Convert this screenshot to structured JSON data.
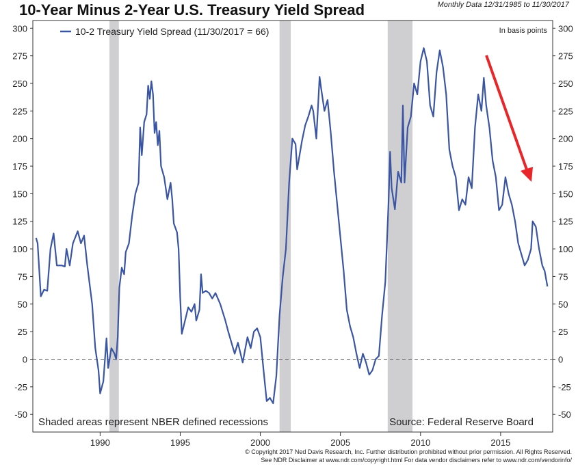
{
  "chart_data": {
    "type": "line",
    "title": "10-Year Minus 2-Year U.S. Treasury Yield Spread",
    "subtitle": "Monthly Data 12/31/1985 to 11/30/2017",
    "y_label": "In basis points",
    "annotations": [
      "Shaded areas represent NBER defined recessions",
      "Source: Federal Reserve Board"
    ],
    "footer": [
      "© Copyright 2017 Ned Davis Research, Inc. Further distribution prohibited without prior permission. All Rights Reserved.",
      "See NDR Disclaimer at www.ndr.com/copyright.html  For data vendor disclaimers refer to www.ndr.com/vendorinfo/"
    ],
    "recessions": [
      [
        1990.58,
        1991.17
      ],
      [
        2001.2,
        2001.9
      ],
      [
        2007.95,
        2009.5
      ]
    ],
    "xlim": [
      1985.8,
      2018.25
    ],
    "xticks": [
      1990,
      1995,
      2000,
      2005,
      2010,
      2015
    ],
    "ylim": [
      -66,
      307
    ],
    "yticks": [
      -50,
      -25,
      0,
      25,
      50,
      75,
      100,
      125,
      150,
      175,
      200,
      225,
      250,
      275,
      300
    ],
    "zero_line": true,
    "x": [
      1986.0,
      1986.1,
      1986.3,
      1986.5,
      1986.7,
      1986.9,
      1987.1,
      1987.3,
      1987.6,
      1987.8,
      1987.9,
      1988.1,
      1988.3,
      1988.6,
      1988.8,
      1989.0,
      1989.2,
      1989.5,
      1989.7,
      1989.9,
      1990.0,
      1990.2,
      1990.4,
      1990.5,
      1990.7,
      1990.9,
      1991.0,
      1991.1,
      1991.2,
      1991.35,
      1991.5,
      1991.6,
      1991.8,
      1992.0,
      1992.2,
      1992.4,
      1992.5,
      1992.6,
      1992.75,
      1992.9,
      1993.0,
      1993.1,
      1993.2,
      1993.3,
      1993.4,
      1993.5,
      1993.6,
      1993.7,
      1993.8,
      1994.0,
      1994.2,
      1994.4,
      1994.5,
      1994.6,
      1994.8,
      1994.9,
      1995.0,
      1995.1,
      1995.3,
      1995.5,
      1995.7,
      1995.9,
      1996.0,
      1996.2,
      1996.3,
      1996.4,
      1996.6,
      1996.8,
      1997.0,
      1997.2,
      1997.5,
      1997.8,
      1998.0,
      1998.2,
      1998.4,
      1998.6,
      1998.9,
      1999.0,
      1999.2,
      1999.4,
      1999.6,
      1999.8,
      2000.0,
      2000.2,
      2000.4,
      2000.6,
      2000.8,
      2001.0,
      2001.2,
      2001.4,
      2001.6,
      2001.8,
      2002.0,
      2002.2,
      2002.3,
      2002.6,
      2002.8,
      2003.0,
      2003.2,
      2003.3,
      2003.5,
      2003.7,
      2003.8,
      2004.0,
      2004.2,
      2004.4,
      2004.6,
      2004.8,
      2005.0,
      2005.2,
      2005.4,
      2005.6,
      2005.8,
      2006.0,
      2006.2,
      2006.4,
      2006.6,
      2006.8,
      2007.0,
      2007.2,
      2007.4,
      2007.6,
      2007.8,
      2008.0,
      2008.1,
      2008.2,
      2008.4,
      2008.6,
      2008.8,
      2008.9,
      2009.0,
      2009.2,
      2009.4,
      2009.6,
      2009.8,
      2010.0,
      2010.2,
      2010.4,
      2010.6,
      2010.8,
      2011.0,
      2011.2,
      2011.4,
      2011.6,
      2011.8,
      2012.0,
      2012.2,
      2012.4,
      2012.6,
      2012.8,
      2013.0,
      2013.2,
      2013.4,
      2013.6,
      2013.8,
      2013.95,
      2014.1,
      2014.3,
      2014.5,
      2014.7,
      2014.9,
      2015.1,
      2015.3,
      2015.5,
      2015.7,
      2015.9,
      2016.1,
      2016.3,
      2016.5,
      2016.7,
      2016.9,
      2017.0,
      2017.2,
      2017.4,
      2017.6,
      2017.75,
      2017.92
    ],
    "series": [
      {
        "name": "10-2 Treasury Yield Spread (11/30/2017 = 66)",
        "color": "#3a55a4",
        "values": [
          110,
          105,
          57,
          63,
          62,
          100,
          114,
          85,
          85,
          84,
          100,
          85,
          105,
          116,
          105,
          112,
          85,
          50,
          10,
          -10,
          -31,
          -20,
          19,
          -8,
          10,
          5,
          0,
          20,
          65,
          83,
          77,
          97,
          105,
          130,
          150,
          160,
          210,
          185,
          215,
          222,
          248,
          236,
          252,
          240,
          205,
          215,
          194,
          207,
          175,
          165,
          145,
          160,
          145,
          123,
          115,
          100,
          55,
          23,
          35,
          47,
          43,
          50,
          35,
          45,
          77,
          60,
          62,
          60,
          55,
          60,
          50,
          36,
          25,
          15,
          5,
          15,
          -3,
          5,
          20,
          10,
          25,
          28,
          20,
          -10,
          -38,
          -35,
          -40,
          -15,
          40,
          75,
          100,
          160,
          200,
          195,
          172,
          198,
          212,
          220,
          230,
          225,
          200,
          256,
          245,
          225,
          235,
          205,
          170,
          140,
          110,
          80,
          45,
          30,
          20,
          5,
          -8,
          5,
          -3,
          -14,
          -10,
          0,
          3,
          40,
          70,
          140,
          188,
          155,
          136,
          170,
          160,
          230,
          160,
          210,
          220,
          250,
          240,
          270,
          282,
          270,
          230,
          220,
          260,
          280,
          265,
          240,
          190,
          175,
          165,
          135,
          145,
          140,
          165,
          155,
          210,
          240,
          225,
          255,
          230,
          210,
          180,
          165,
          135,
          140,
          165,
          150,
          140,
          125,
          105,
          95,
          85,
          90,
          100,
          125,
          120,
          100,
          85,
          80,
          66
        ]
      }
    ]
  }
}
